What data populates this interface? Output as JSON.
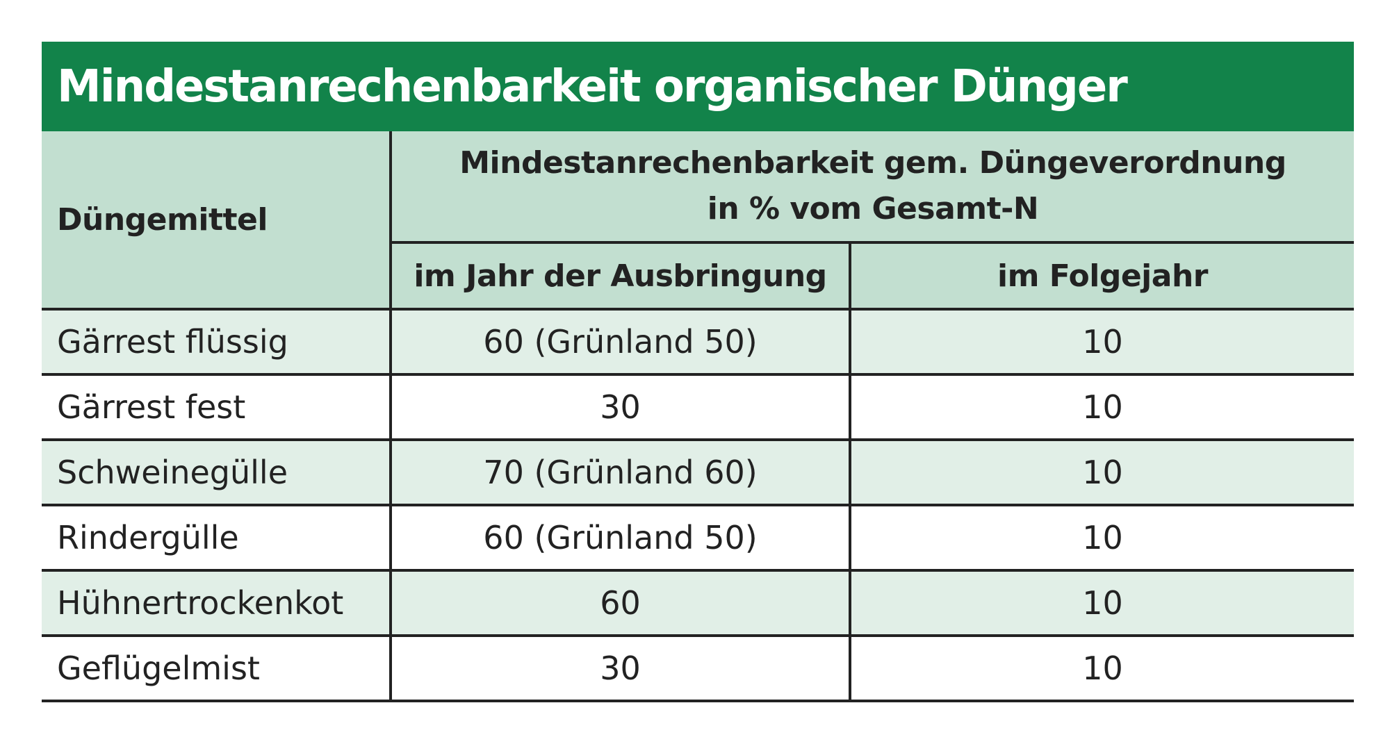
{
  "title": "Mindestanrechenbarkeit organischer Dünger",
  "header": {
    "col1": "Düngemittel",
    "group_line1": "Mindestanrechenbarkeit gem. Düngeverordnung",
    "group_line2": "in % vom Gesamt-N",
    "col2": "im Jahr der Ausbringung",
    "col3": "im Folgejahr"
  },
  "rows": [
    {
      "name": "Gärrest flüssig",
      "year": "60 (Grünland 50)",
      "next": "10"
    },
    {
      "name": "Gärrest fest",
      "year": "30",
      "next": "10"
    },
    {
      "name": "Schweinegülle",
      "year": "70 (Grünland 60)",
      "next": "10"
    },
    {
      "name": "Rindergülle",
      "year": "60 (Grünland 50)",
      "next": "10"
    },
    {
      "name": "Hühnertrockenkot",
      "year": "60",
      "next": "10"
    },
    {
      "name": "Geflügelmist",
      "year": "30",
      "next": "10"
    }
  ],
  "colors": {
    "title_bar": "#12834a",
    "header_bg": "#c2dfd0",
    "row_shaded": "#e1efe7",
    "row_plain": "#ffffff"
  }
}
